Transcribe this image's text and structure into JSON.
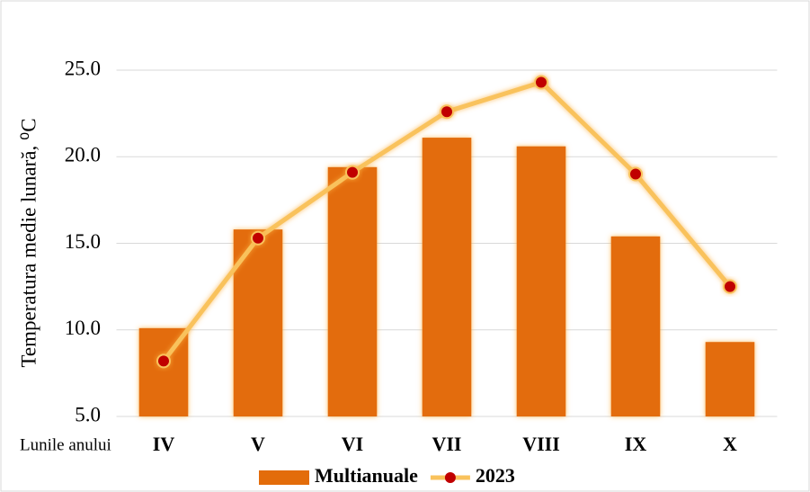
{
  "chart_data": {
    "type": "bar",
    "ylabel": "Temperatura medie lunară, ⁰C",
    "xlabel": "Lunile anului",
    "categories": [
      "IV",
      "V",
      "VI",
      "VII",
      "VIII",
      "IX",
      "X"
    ],
    "series": [
      {
        "name": "Multianuale",
        "type": "bar",
        "color": "#e36c0a",
        "values": [
          10.1,
          15.8,
          19.4,
          21.1,
          20.6,
          15.4,
          9.3
        ]
      },
      {
        "name": "2023",
        "type": "line",
        "color": "#f9c25c",
        "marker_color": "#c00000",
        "values": [
          8.2,
          15.3,
          19.1,
          22.6,
          24.3,
          19.0,
          12.5
        ]
      }
    ],
    "ylim": [
      5,
      25
    ],
    "yticks": [
      {
        "value": 5,
        "label": "5.0"
      },
      {
        "value": 10,
        "label": "10.0"
      },
      {
        "value": 15,
        "label": "15.0"
      },
      {
        "value": 20,
        "label": "20.0"
      },
      {
        "value": 25,
        "label": "25.0"
      }
    ],
    "grid": true,
    "legend": "bottom"
  }
}
